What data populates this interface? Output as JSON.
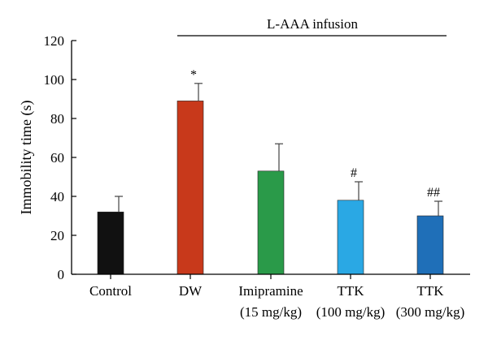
{
  "chart_data": {
    "type": "bar",
    "ylabel": "Immobility time (s)",
    "ylim": [
      0,
      120
    ],
    "yticks": [
      0,
      20,
      40,
      60,
      80,
      100,
      120
    ],
    "grid": false,
    "infusion_label": "L-AAA infusion",
    "infusion_span": [
      "DW",
      "TTK (300 mg/kg)"
    ],
    "bars": [
      {
        "id": "control",
        "label_lines": [
          "Control"
        ],
        "value": 32,
        "error": 8,
        "color": "#111111",
        "annotation": ""
      },
      {
        "id": "dw",
        "label_lines": [
          "DW"
        ],
        "value": 89,
        "error": 9,
        "color": "#c8391b",
        "annotation": "*"
      },
      {
        "id": "imipramine",
        "label_lines": [
          "Imipramine",
          "(15 mg/kg)"
        ],
        "value": 53,
        "error": 14,
        "color": "#2a9a49",
        "annotation": ""
      },
      {
        "id": "ttk100",
        "label_lines": [
          "TTK",
          "(100 mg/kg)"
        ],
        "value": 38,
        "error": 9.5,
        "color": "#2aa8e4",
        "annotation": "#"
      },
      {
        "id": "ttk300",
        "label_lines": [
          "TTK",
          "(300 mg/kg)"
        ],
        "value": 30,
        "error": 7.5,
        "color": "#1f6fb8",
        "annotation": "##"
      }
    ]
  }
}
